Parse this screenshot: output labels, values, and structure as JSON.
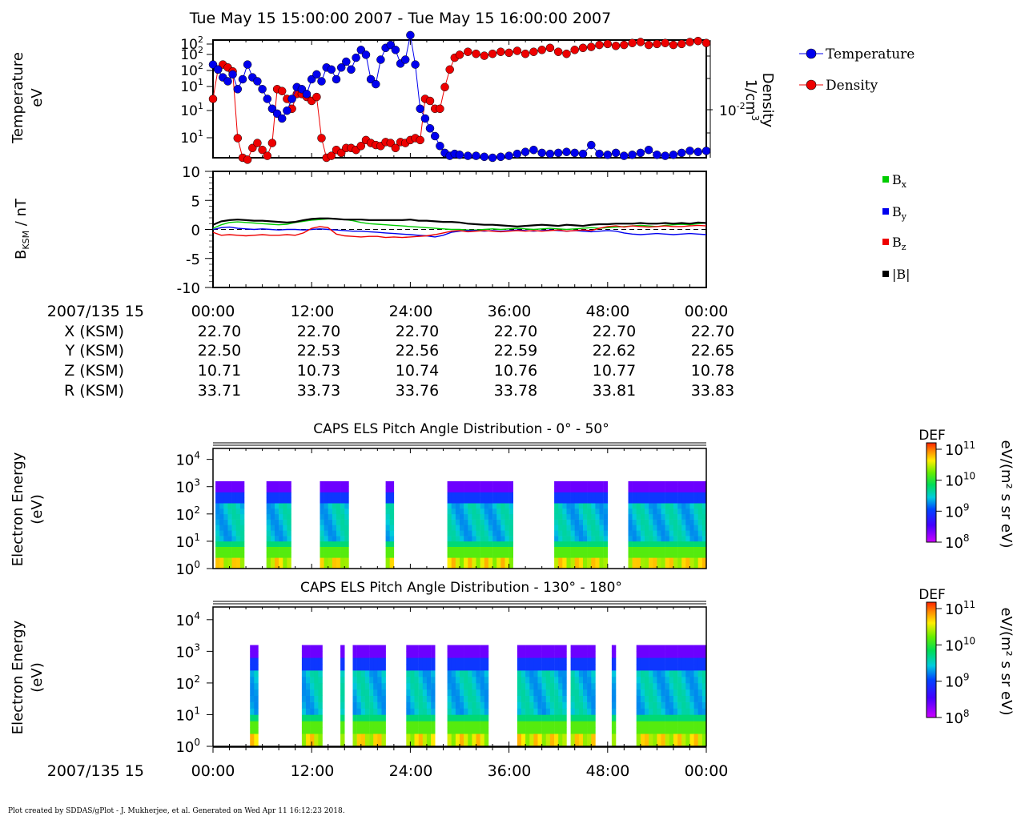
{
  "page_title": "Tue May 15 15:00:00 2007 - Tue May 15 16:00:00 2007",
  "footer": "Plot created by SDDAS/gPlot - J. Mukherjee, et al.  Generated on Wed Apr 11 16:12:23 2018.",
  "colors": {
    "temperature": "#0000ee",
    "density": "#ee0000",
    "bx": "#00cc00",
    "by": "#0000ee",
    "bz": "#ee0000",
    "bmag": "#000000"
  },
  "ephemeris": {
    "date_label": "2007/135 15",
    "times": [
      "00:00",
      "12:00",
      "24:00",
      "36:00",
      "48:00",
      "00:00"
    ],
    "rows": [
      {
        "label": "X (KSM)",
        "values": [
          "22.70",
          "22.70",
          "22.70",
          "22.70",
          "22.70",
          "22.70"
        ]
      },
      {
        "label": "Y (KSM)",
        "values": [
          "22.50",
          "22.53",
          "22.56",
          "22.59",
          "22.62",
          "22.65"
        ]
      },
      {
        "label": "Z (KSM)",
        "values": [
          "10.71",
          "10.73",
          "10.74",
          "10.76",
          "10.77",
          "10.78"
        ]
      },
      {
        "label": "R (KSM)",
        "values": [
          "33.71",
          "33.73",
          "33.76",
          "33.78",
          "33.81",
          "33.83"
        ]
      }
    ]
  },
  "bottom_axis": {
    "date_label": "2007/135 15",
    "times": [
      "00:00",
      "12:00",
      "24:00",
      "36:00",
      "48:00",
      "00:00"
    ]
  },
  "chart_data": [
    {
      "type": "line",
      "y_label_left": [
        "Temperature",
        "eV"
      ],
      "y_label_right": [
        "Density",
        "1/cm",
        "3"
      ],
      "left_ticks": [
        "10",
        "10",
        "10",
        "10",
        "10",
        "10"
      ],
      "left_tick_exps": [
        "2",
        "2",
        "2",
        "1",
        "1",
        "1"
      ],
      "right_tick": "10",
      "right_tick_exp": "-2",
      "x_unit": "minutes",
      "xlim": [
        0,
        60
      ],
      "ylim_log": [
        0.9,
        2.1
      ],
      "series": [
        {
          "name": "Temperature",
          "x": [
            0.0,
            0.6,
            1.2,
            1.8,
            2.4,
            3.0,
            3.6,
            4.2,
            4.8,
            5.4,
            6.0,
            6.6,
            7.2,
            7.8,
            8.4,
            9.0,
            9.6,
            10.2,
            10.8,
            11.4,
            12.0,
            12.6,
            13.2,
            13.8,
            14.4,
            15.0,
            15.6,
            16.2,
            16.8,
            17.4,
            18.0,
            18.6,
            19.2,
            19.8,
            20.4,
            21.0,
            21.6,
            22.2,
            22.8,
            23.4,
            24.0,
            24.6,
            25.2,
            25.8,
            26.4,
            27.0,
            27.6,
            28.2,
            28.8,
            29.4,
            30.0,
            31.0,
            32.0,
            33.0,
            34.0,
            35.0,
            36.0,
            37.0,
            38.0,
            39.0,
            40.0,
            41.0,
            42.0,
            43.0,
            44.0,
            45.0,
            46.0,
            47.0,
            48.0,
            49.0,
            50.0,
            51.0,
            52.0,
            53.0,
            54.0,
            55.0,
            56.0,
            57.0,
            58.0,
            59.0,
            60.0
          ],
          "values": [
            1.85,
            1.8,
            1.72,
            1.68,
            1.75,
            1.6,
            1.7,
            1.85,
            1.72,
            1.68,
            1.6,
            1.5,
            1.4,
            1.35,
            1.3,
            1.38,
            1.5,
            1.62,
            1.6,
            1.55,
            1.7,
            1.75,
            1.68,
            1.82,
            1.8,
            1.7,
            1.82,
            1.88,
            1.8,
            1.92,
            2.0,
            1.95,
            1.7,
            1.65,
            1.9,
            2.02,
            2.05,
            2.0,
            1.86,
            1.9,
            2.15,
            1.85,
            1.4,
            1.3,
            1.2,
            1.12,
            1.02,
            0.95,
            0.92,
            0.94,
            0.93,
            0.92,
            0.92,
            0.91,
            0.9,
            0.91,
            0.92,
            0.94,
            0.96,
            0.98,
            0.95,
            0.94,
            0.95,
            0.96,
            0.95,
            0.94,
            1.03,
            0.94,
            0.93,
            0.95,
            0.92,
            0.93,
            0.95,
            0.98,
            0.93,
            0.92,
            0.93,
            0.95,
            0.97,
            0.96,
            0.97
          ]
        },
        {
          "name": "Density",
          "x": [
            0.0,
            0.6,
            1.2,
            1.8,
            2.4,
            3.0,
            3.6,
            4.2,
            4.8,
            5.4,
            6.0,
            6.6,
            7.2,
            7.8,
            8.4,
            9.0,
            9.6,
            10.2,
            10.8,
            11.4,
            12.0,
            12.6,
            13.2,
            13.8,
            14.4,
            15.0,
            15.6,
            16.2,
            16.8,
            17.4,
            18.0,
            18.6,
            19.2,
            19.8,
            20.4,
            21.0,
            21.6,
            22.2,
            22.8,
            23.4,
            24.0,
            24.6,
            25.2,
            25.8,
            26.4,
            27.0,
            27.6,
            28.2,
            28.8,
            29.4,
            30.0,
            31.0,
            32.0,
            33.0,
            34.0,
            35.0,
            36.0,
            37.0,
            38.0,
            39.0,
            40.0,
            41.0,
            42.0,
            43.0,
            44.0,
            45.0,
            46.0,
            47.0,
            48.0,
            49.0,
            50.0,
            51.0,
            52.0,
            53.0,
            54.0,
            55.0,
            56.0,
            57.0,
            58.0,
            59.0,
            60.0
          ],
          "values": [
            1.5,
            1.8,
            1.85,
            1.82,
            1.78,
            1.1,
            0.9,
            0.88,
            1.0,
            1.05,
            0.98,
            0.92,
            1.05,
            1.6,
            1.58,
            1.5,
            1.4,
            1.55,
            1.55,
            1.52,
            1.48,
            1.52,
            1.1,
            0.9,
            0.92,
            0.98,
            0.95,
            1.0,
            1.0,
            0.98,
            1.02,
            1.08,
            1.05,
            1.03,
            1.02,
            1.06,
            1.05,
            1.0,
            1.06,
            1.05,
            1.08,
            1.1,
            1.08,
            1.5,
            1.48,
            1.4,
            1.4,
            1.62,
            1.8,
            1.92,
            1.95,
            1.98,
            1.96,
            1.94,
            1.96,
            1.98,
            1.97,
            1.99,
            1.96,
            1.98,
            2.0,
            2.02,
            1.98,
            1.96,
            2.0,
            2.02,
            2.03,
            2.05,
            2.06,
            2.04,
            2.05,
            2.07,
            2.08,
            2.05,
            2.06,
            2.07,
            2.05,
            2.06,
            2.08,
            2.09,
            2.07
          ]
        }
      ]
    },
    {
      "type": "line",
      "y_label": [
        "B",
        "KSM",
        " / nT"
      ],
      "x_unit": "minutes",
      "xlim": [
        0,
        60
      ],
      "ylim": [
        -10,
        10
      ],
      "y_ticks": [
        "10",
        "5",
        "0",
        "-5",
        "-10"
      ],
      "x": [
        0,
        1,
        2,
        3,
        4,
        5,
        6,
        7,
        8,
        9,
        10,
        11,
        12,
        13,
        14,
        15,
        16,
        17,
        18,
        19,
        20,
        21,
        22,
        23,
        24,
        25,
        26,
        27,
        28,
        29,
        30,
        31,
        32,
        33,
        34,
        35,
        36,
        37,
        38,
        39,
        40,
        41,
        42,
        43,
        44,
        45,
        46,
        47,
        48,
        49,
        50,
        51,
        52,
        53,
        54,
        55,
        56,
        57,
        58,
        59,
        60
      ],
      "series": [
        {
          "name": "B_x",
          "values": [
            0.2,
            0.8,
            1.2,
            1.3,
            1.2,
            1.1,
            1.0,
            0.9,
            0.8,
            0.9,
            1.2,
            1.4,
            1.6,
            1.7,
            1.8,
            1.8,
            1.7,
            1.5,
            1.2,
            1.0,
            0.9,
            0.8,
            0.7,
            0.6,
            0.5,
            0.4,
            0.3,
            0.2,
            0.1,
            0.0,
            0.0,
            -0.1,
            -0.1,
            0.0,
            0.1,
            0.0,
            0.1,
            0.2,
            0.1,
            0.0,
            0.1,
            0.2,
            0.1,
            0.0,
            0.1,
            0.2,
            0.3,
            0.2,
            0.3,
            0.4,
            0.5,
            0.6,
            0.7,
            0.6,
            0.5,
            0.7,
            0.8,
            0.9,
            0.8,
            1.0,
            1.1
          ]
        },
        {
          "name": "B_y",
          "values": [
            0.0,
            0.3,
            0.4,
            0.2,
            0.1,
            0.0,
            0.1,
            0.0,
            -0.1,
            0.0,
            0.0,
            -0.1,
            0.0,
            0.1,
            0.0,
            -0.1,
            -0.2,
            -0.3,
            -0.3,
            -0.4,
            -0.5,
            -0.6,
            -0.7,
            -0.8,
            -0.9,
            -1.0,
            -1.1,
            -1.3,
            -1.0,
            -0.5,
            -0.3,
            -0.2,
            -0.2,
            -0.3,
            -0.2,
            -0.3,
            -0.2,
            -0.1,
            -0.2,
            -0.3,
            -0.2,
            -0.1,
            -0.2,
            -0.3,
            -0.2,
            -0.3,
            -0.4,
            -0.3,
            -0.2,
            -0.3,
            -0.6,
            -0.8,
            -0.9,
            -0.8,
            -0.7,
            -0.8,
            -0.9,
            -0.8,
            -0.7,
            -0.8,
            -0.9
          ]
        },
        {
          "name": "B_z",
          "values": [
            -0.5,
            -1.0,
            -0.9,
            -1.0,
            -1.1,
            -1.0,
            -0.9,
            -1.0,
            -1.0,
            -0.9,
            -1.0,
            -0.6,
            0.2,
            0.5,
            0.3,
            -0.8,
            -1.1,
            -1.2,
            -1.3,
            -1.2,
            -1.2,
            -1.4,
            -1.3,
            -1.4,
            -1.3,
            -1.2,
            -1.1,
            -0.9,
            -0.6,
            -0.3,
            -0.2,
            -0.4,
            -0.3,
            -0.2,
            -0.3,
            -0.4,
            -0.3,
            -0.2,
            -0.3,
            -0.2,
            -0.3,
            -0.2,
            -0.1,
            -0.3,
            -0.2,
            -0.1,
            -0.2,
            0.2,
            0.5,
            0.6,
            0.4,
            0.6,
            0.5,
            0.4,
            0.5,
            0.6,
            0.5,
            0.5,
            0.6,
            0.7,
            0.6
          ]
        },
        {
          "name": "|B|",
          "values": [
            0.8,
            1.4,
            1.6,
            1.7,
            1.6,
            1.5,
            1.5,
            1.4,
            1.3,
            1.2,
            1.3,
            1.6,
            1.8,
            1.9,
            1.9,
            1.8,
            1.7,
            1.7,
            1.7,
            1.6,
            1.6,
            1.6,
            1.6,
            1.6,
            1.7,
            1.5,
            1.5,
            1.4,
            1.3,
            1.3,
            1.2,
            1.0,
            0.9,
            0.8,
            0.8,
            0.7,
            0.6,
            0.5,
            0.6,
            0.7,
            0.8,
            0.7,
            0.6,
            0.8,
            0.7,
            0.6,
            0.8,
            0.9,
            0.9,
            1.0,
            1.0,
            1.0,
            1.1,
            1.0,
            1.0,
            1.1,
            1.0,
            1.1,
            1.0,
            1.2,
            1.1
          ]
        }
      ]
    },
    {
      "type": "heatmap",
      "title": "CAPS ELS Pitch Angle Distribution - 0° - 50°",
      "y_label": [
        "Electron Energy",
        "(eV)"
      ],
      "y_ticks": [
        "10",
        "10",
        "10",
        "10",
        "10"
      ],
      "y_tick_exps": [
        "4",
        "3",
        "2",
        "1",
        "0"
      ],
      "colorbar": {
        "title": "DEF",
        "unit": "eV/(m² s sr eV)",
        "ticks": [
          "10",
          "10",
          "10",
          "10"
        ],
        "tick_exps": [
          "11",
          "10",
          "9",
          "8"
        ]
      },
      "x_unit": "minutes",
      "xlim": [
        0,
        60
      ],
      "ylim_log": [
        0,
        4.4
      ],
      "segments": [
        [
          0.3,
          3.5
        ],
        [
          6.5,
          9.5
        ],
        [
          13.0,
          16.5
        ],
        [
          21.0,
          22.0
        ],
        [
          28.5,
          36.5
        ],
        [
          41.5,
          48.0
        ],
        [
          50.5,
          60.0
        ]
      ],
      "intensity_scale": [
        8,
        11
      ]
    },
    {
      "type": "heatmap",
      "title": "CAPS ELS Pitch Angle Distribution - 130° - 180°",
      "y_label": [
        "Electron Energy",
        "(eV)"
      ],
      "y_ticks": [
        "10",
        "10",
        "10",
        "10",
        "10"
      ],
      "y_tick_exps": [
        "4",
        "3",
        "2",
        "1",
        "0"
      ],
      "colorbar": {
        "title": "DEF",
        "unit": "eV/(m² s sr eV)",
        "ticks": [
          "10",
          "10",
          "10",
          "10"
        ],
        "tick_exps": [
          "11",
          "10",
          "9",
          "8"
        ]
      },
      "x_unit": "minutes",
      "xlim": [
        0,
        60
      ],
      "ylim_log": [
        0,
        4.4
      ],
      "segments": [
        [
          4.5,
          5.5
        ],
        [
          10.8,
          13.2
        ],
        [
          15.5,
          15.8
        ],
        [
          17.0,
          21.0
        ],
        [
          23.5,
          27.0
        ],
        [
          28.5,
          33.5
        ],
        [
          37.0,
          43.0
        ],
        [
          43.5,
          46.5
        ],
        [
          48.5,
          49.0
        ],
        [
          51.5,
          60.0
        ]
      ],
      "intensity_scale": [
        8,
        11
      ]
    }
  ]
}
